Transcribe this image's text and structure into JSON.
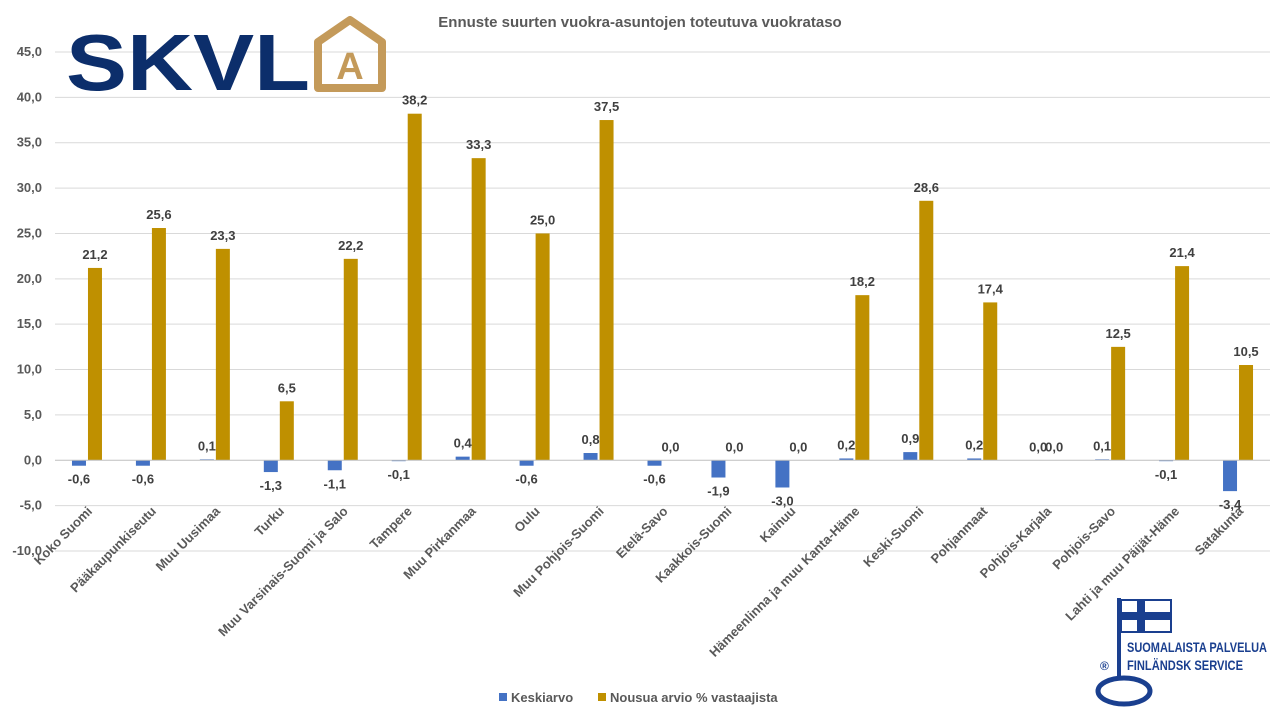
{
  "logo": {
    "text": "SKVL",
    "emblem_letter": "A",
    "text_color": "#0c2e6b",
    "emblem_color": "#c49a5a"
  },
  "badge": {
    "line1": "SUOMALAISTA PALVELUA",
    "line2": "FINLÄNDSK SERVICE",
    "mark": "®",
    "icon": "key-flag-icon",
    "color": "#1a3f8f"
  },
  "chart_data": {
    "type": "bar",
    "title": "Ennuste suurten vuokra-asuntojen toteutuva vuokrataso",
    "ylim": [
      -10,
      45
    ],
    "yticks": [
      "-10,0",
      "-5,0",
      "0,0",
      "5,0",
      "10,0",
      "15,0",
      "20,0",
      "25,0",
      "30,0",
      "35,0",
      "40,0",
      "45,0"
    ],
    "grid": true,
    "legend_position": "bottom",
    "categories": [
      "Koko Suomi",
      "Pääkaupunkiseutu",
      "Muu Uusimaa",
      "Turku",
      "Muu Varsinais-Suomi ja Salo",
      "Tampere",
      "Muu Pirkanmaa",
      "Oulu",
      "Muu Pohjois-Suomi",
      "Etelä-Savo",
      "Kaakkois-Suomi",
      "Kainuu",
      "Hämeenlinna ja muu Kanta-Häme",
      "Keski-Suomi",
      "Pohjanmaat",
      "Pohjois-Karjala",
      "Pohjois-Savo",
      "Lahti ja muu Päijät-Häme",
      "Satakunta"
    ],
    "series": [
      {
        "name": "Keskiarvo",
        "color": "#4472c4",
        "values": [
          -0.6,
          -0.6,
          0.1,
          -1.3,
          -1.1,
          -0.1,
          0.4,
          -0.6,
          0.8,
          -0.6,
          -1.9,
          -3.0,
          0.2,
          0.9,
          0.2,
          0.0,
          0.1,
          -0.1,
          -3.4
        ],
        "labels": [
          "-0,6",
          "-0,6",
          "0,1",
          "-1,3",
          "-1,1",
          "-0,1",
          "0,4",
          "-0,6",
          "0,8",
          "-0,6",
          "-1,9",
          "-3,0",
          "0,2",
          "0,9",
          "0,2",
          "0,0",
          "0,1",
          "-0,1",
          "-3,4"
        ]
      },
      {
        "name": "Nousua arvio % vastaajista",
        "color": "#bf9000",
        "values": [
          21.2,
          25.6,
          23.3,
          6.5,
          22.2,
          38.2,
          33.3,
          25.0,
          37.5,
          0.0,
          0.0,
          0.0,
          18.2,
          28.6,
          17.4,
          0.0,
          12.5,
          21.4,
          10.5
        ],
        "labels": [
          "21,2",
          "25,6",
          "23,3",
          "6,5",
          "22,2",
          "38,2",
          "33,3",
          "25,0",
          "37,5",
          "0,0",
          "0,0",
          "0,0",
          "18,2",
          "28,6",
          "17,4",
          "0,0",
          "12,5",
          "21,4",
          "10,5"
        ]
      }
    ]
  }
}
